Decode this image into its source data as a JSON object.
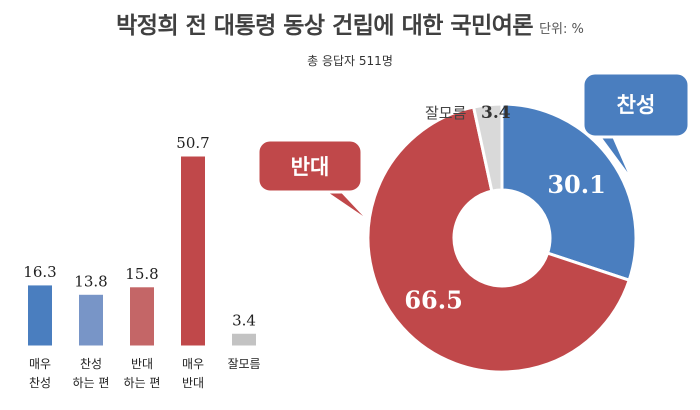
{
  "header": {
    "title": "박정희 전 대통령 동상 건립에 대한 국민여론",
    "unit": "단위: %",
    "subtitle": "총 응답자 511명"
  },
  "chart_data": [
    {
      "type": "bar",
      "categories": [
        [
          "매우",
          "찬성"
        ],
        [
          "찬성",
          "하는 편"
        ],
        [
          "반대",
          "하는 편"
        ],
        [
          "매우",
          "반대"
        ],
        [
          "잘모름"
        ]
      ],
      "values": [
        16.3,
        13.8,
        15.8,
        50.7,
        3.4
      ],
      "value_labels": [
        "16.3",
        "13.8",
        "15.8",
        "50.7",
        "3.4"
      ],
      "colors": [
        "#4a7ebf",
        "#7895c7",
        "#c46667",
        "#c0484a",
        "#c3c3c3"
      ],
      "ylim": [
        0,
        50.7
      ]
    },
    {
      "type": "pie",
      "style": "donut",
      "slices": [
        {
          "label": "찬성",
          "value": 30.1,
          "value_label": "30.1",
          "color": "#4a7ebf"
        },
        {
          "label": "반대",
          "value": 66.5,
          "value_label": "66.5",
          "color": "#c0484a"
        },
        {
          "label": "잘모름",
          "value": 3.4,
          "value_label": "3.4",
          "color": "#d9d9d9"
        }
      ]
    }
  ]
}
